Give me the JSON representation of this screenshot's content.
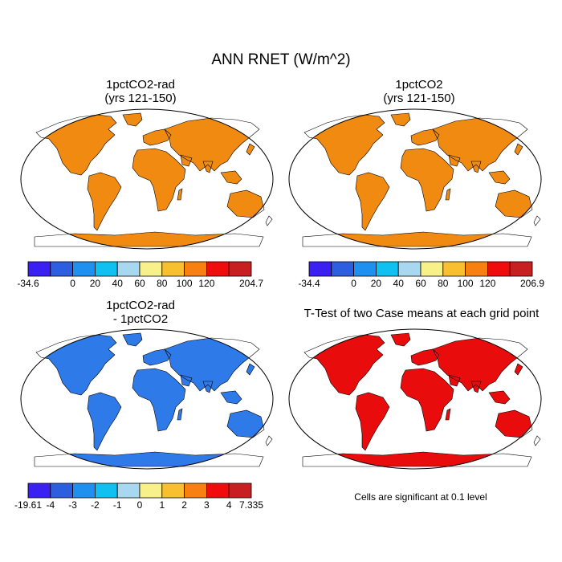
{
  "title": "ANN RNET (W/m^2)",
  "panels": [
    {
      "title_line1": "1pctCO2-rad",
      "title_line2": "(yrs 121-150)",
      "colorbar": {
        "colors": [
          "#3a20f2",
          "#2e5ee0",
          "#1f8ff0",
          "#0fc0f0",
          "#a8d8f0",
          "#f8f088",
          "#f8c030",
          "#f88010",
          "#f00c0c",
          "#c82020"
        ],
        "labels": [
          "-34.6",
          "0",
          "20",
          "40",
          "60",
          "80",
          "100",
          "120",
          "204.7"
        ]
      }
    },
    {
      "title_line1": "1pctCO2",
      "title_line2": "(yrs 121-150)",
      "colorbar": {
        "colors": [
          "#3a20f2",
          "#2e5ee0",
          "#1f8ff0",
          "#0fc0f0",
          "#a8d8f0",
          "#f8f088",
          "#f8c030",
          "#f88010",
          "#f00c0c",
          "#c82020"
        ],
        "labels": [
          "-34.4",
          "0",
          "20",
          "40",
          "60",
          "80",
          "100",
          "120",
          "206.9"
        ]
      }
    },
    {
      "title_line1": "1pctCO2-rad",
      "title_line2": "- 1pctCO2",
      "colorbar": {
        "colors": [
          "#3a20f2",
          "#2e5ee0",
          "#1f8ff0",
          "#0fc0f0",
          "#a8d8f0",
          "#f8f088",
          "#f8c030",
          "#f88010",
          "#f00c0c",
          "#c82020"
        ],
        "labels": [
          "-19.61",
          "-4",
          "-3",
          "-2",
          "-1",
          "0",
          "1",
          "2",
          "3",
          "4",
          "7.335"
        ]
      }
    },
    {
      "title": "T-Test of two Case means at each grid point",
      "note": "Cells are significant at 0.1 level",
      "significant_color": "#e80c0c"
    }
  ]
}
